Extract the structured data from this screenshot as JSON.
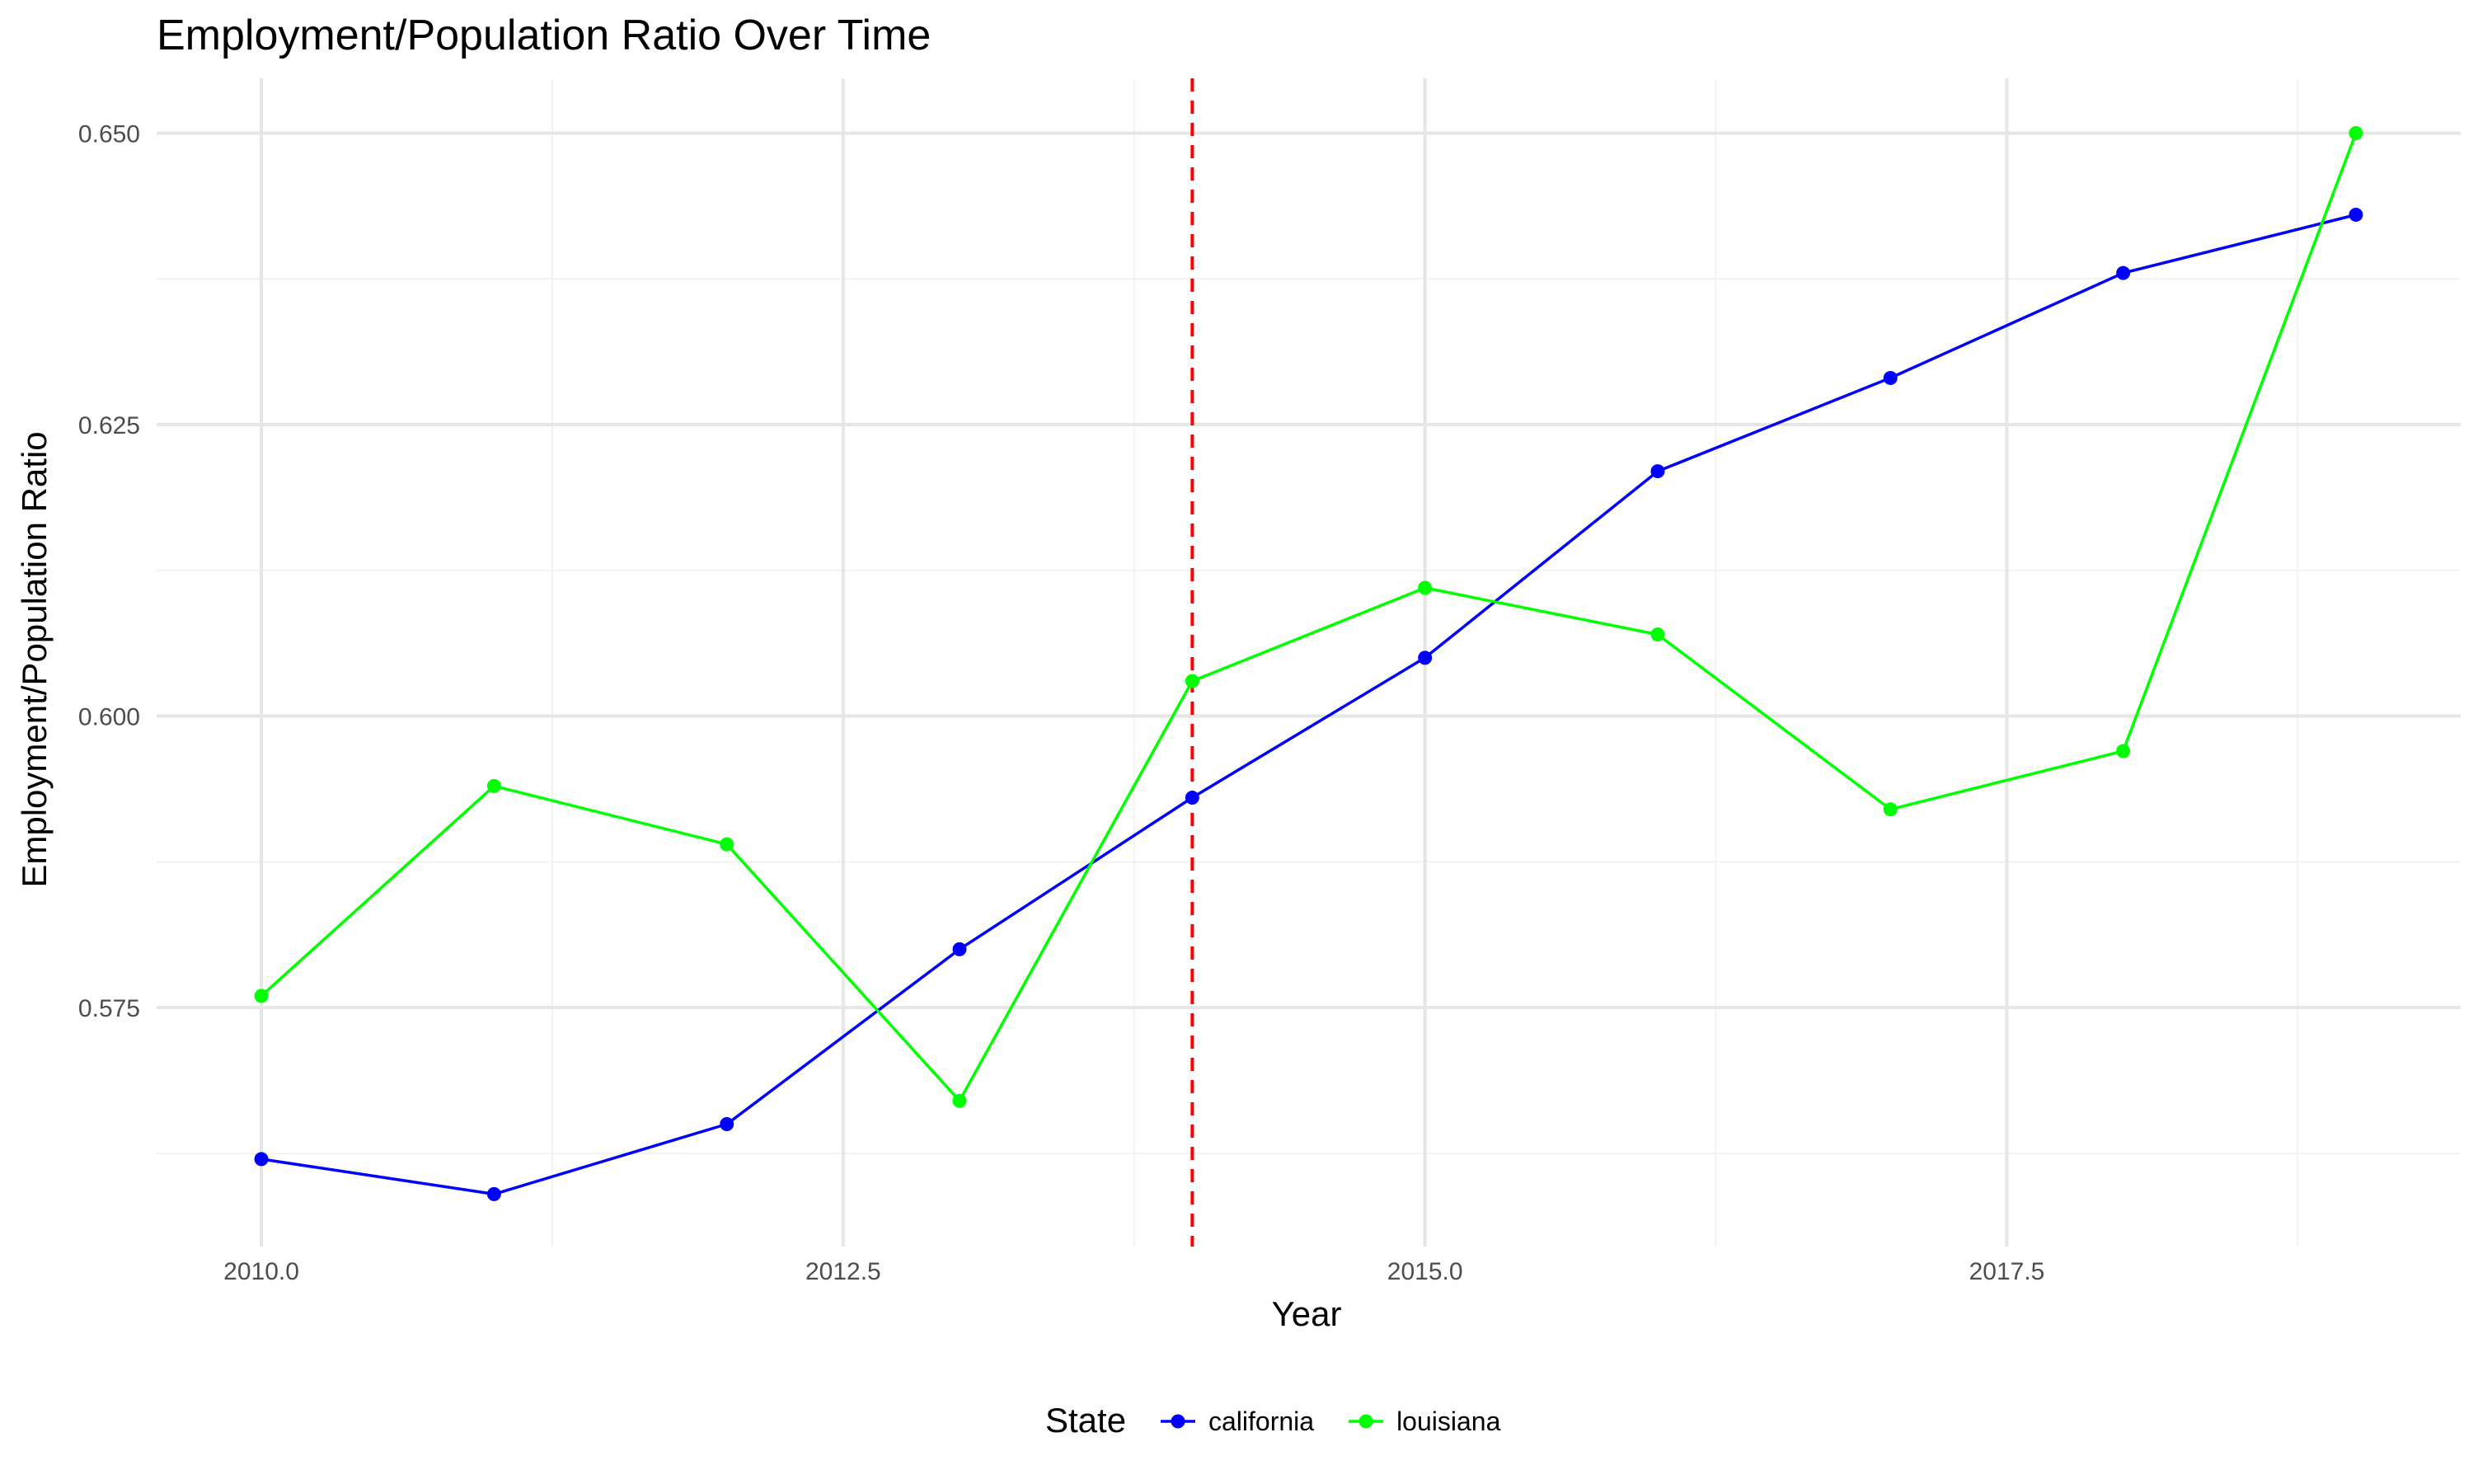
{
  "chart_data": {
    "type": "line",
    "title": "Employment/Population Ratio Over Time",
    "xlabel": "Year",
    "ylabel": "Employment/Population Ratio",
    "xlim": [
      2009.55,
      2019.45
    ],
    "ylim": [
      0.5545,
      0.6547
    ],
    "x_ticks": [
      2010.0,
      2012.5,
      2015.0,
      2017.5
    ],
    "x_tick_labels": [
      "2010.0",
      "2012.5",
      "2015.0",
      "2017.5"
    ],
    "y_ticks": [
      0.575,
      0.6,
      0.625,
      0.65
    ],
    "y_tick_labels": [
      "0.575",
      "0.600",
      "0.625",
      "0.650"
    ],
    "grid": true,
    "legend": {
      "title": "State",
      "position": "bottom"
    },
    "x": [
      2010,
      2011,
      2012,
      2013,
      2014,
      2015,
      2016,
      2017,
      2018,
      2019
    ],
    "series": [
      {
        "name": "california",
        "color": "#0000FF",
        "values": [
          0.562,
          0.559,
          0.565,
          0.58,
          0.593,
          0.605,
          0.621,
          0.629,
          0.638,
          0.643
        ]
      },
      {
        "name": "louisiana",
        "color": "#00FF00",
        "values": [
          0.576,
          0.594,
          0.589,
          0.567,
          0.603,
          0.611,
          0.607,
          0.592,
          0.597,
          0.65
        ]
      }
    ],
    "reference_line": {
      "x": 2014,
      "color": "#FF0000",
      "style": "dashed"
    }
  }
}
